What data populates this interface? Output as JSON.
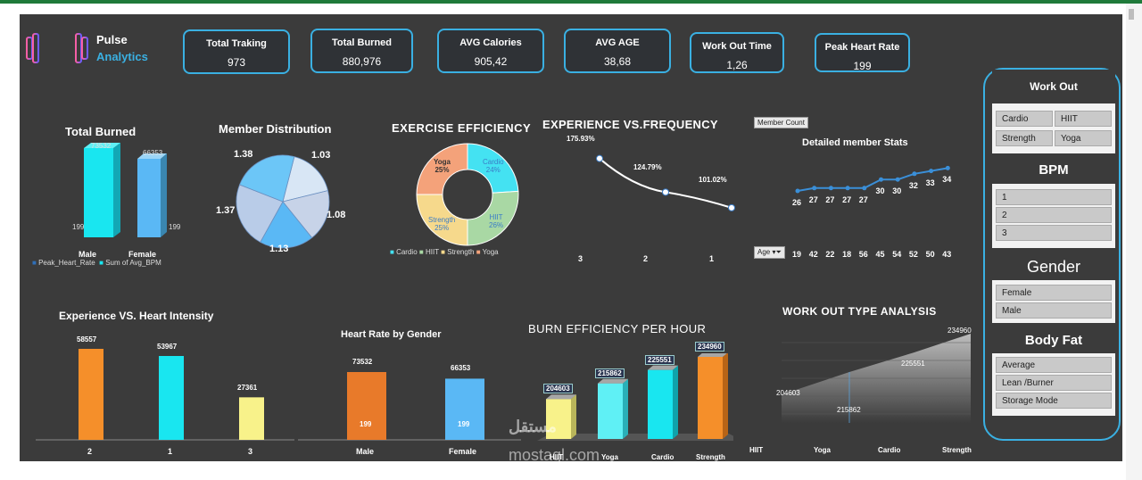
{
  "brand": {
    "line1": "Pulse",
    "line2": "Analytics"
  },
  "kpis": [
    {
      "label": "Total Traking",
      "value": "973"
    },
    {
      "label": "Total Burned",
      "value": "880,976"
    },
    {
      "label": "AVG Calories",
      "value": "905,42"
    },
    {
      "label": "AVG AGE",
      "value": "38,68"
    },
    {
      "label": "Work Out Time",
      "value": "1,26"
    },
    {
      "label": "Peak Heart Rate",
      "value": "199"
    }
  ],
  "charts": {
    "total_burned": {
      "title": "Total Burned",
      "categories": [
        "Male",
        "Female"
      ],
      "top_values": [
        "73532",
        "66353"
      ],
      "bottom_values": [
        "199",
        "199"
      ],
      "legend": [
        "Peak_Heart_Rate",
        "Sum of Avg_BPM"
      ]
    },
    "member_distribution": {
      "title": "Member Distribution",
      "labels": [
        "1.03",
        "1.08",
        "1.13",
        "1.37",
        "1.38"
      ]
    },
    "exercise_efficiency": {
      "title": "EXERCISE EFFICIENCY",
      "segments": [
        {
          "name": "Cardio",
          "pct": "24%"
        },
        {
          "name": "HIIT",
          "pct": "26%"
        },
        {
          "name": "Strength",
          "pct": "25%"
        },
        {
          "name": "Yoga",
          "pct": "25%"
        }
      ],
      "legend": [
        "Cardio",
        "HIIT",
        "Strength",
        "Yoga"
      ]
    },
    "experience_frequency": {
      "title": "EXPERIENCE VS.FREQUENCY",
      "labels": [
        "175.93%",
        "124.79%",
        "101.02%"
      ],
      "x": [
        "3",
        "2",
        "1"
      ]
    },
    "member_stats": {
      "tag": "Member Count",
      "title": "Detailed member Stats",
      "values": [
        "26",
        "27",
        "27",
        "27",
        "27",
        "30",
        "30",
        "32",
        "33",
        "34"
      ],
      "age_tag": "Age",
      "ages": [
        "19",
        "42",
        "22",
        "18",
        "56",
        "45",
        "54",
        "52",
        "50",
        "43"
      ]
    },
    "experience_heart": {
      "title": "Experience VS. Heart Intensity",
      "values": [
        "58557",
        "53967",
        "27361"
      ],
      "x": [
        "2",
        "1",
        "3"
      ]
    },
    "heart_rate_gender": {
      "title": "Heart Rate by Gender",
      "top": [
        "73532",
        "66353"
      ],
      "bottom": [
        "199",
        "199"
      ],
      "x": [
        "Male",
        "Female"
      ]
    },
    "burn_efficiency": {
      "title": "BURN EFFICIENCY PER HOUR",
      "values": [
        "204603",
        "215862",
        "225551",
        "234960"
      ],
      "x": [
        "HIIT",
        "Yoga",
        "Cardio",
        "Strength"
      ]
    },
    "workout_type": {
      "title": "WORK OUT TYPE ANALYSIS",
      "values": [
        "204603",
        "215862",
        "225551",
        "234960"
      ],
      "x": [
        "HIIT",
        "Yoga",
        "Cardio",
        "Strength"
      ]
    }
  },
  "chart_data": [
    {
      "type": "bar",
      "title": "Total Burned",
      "categories": [
        "Male",
        "Female"
      ],
      "series": [
        {
          "name": "Peak_Heart_Rate",
          "values": [
            199,
            199
          ]
        },
        {
          "name": "Sum of Avg_BPM",
          "values": [
            73532,
            66353
          ]
        }
      ]
    },
    {
      "type": "pie",
      "title": "Member Distribution",
      "values": [
        1.03,
        1.08,
        1.13,
        1.37,
        1.38
      ]
    },
    {
      "type": "pie",
      "title": "EXERCISE EFFICIENCY",
      "categories": [
        "Cardio",
        "HIIT",
        "Strength",
        "Yoga"
      ],
      "values": [
        24,
        26,
        25,
        25
      ]
    },
    {
      "type": "line",
      "title": "EXPERIENCE VS.FREQUENCY",
      "x": [
        "3",
        "2",
        "1"
      ],
      "values": [
        175.93,
        124.79,
        101.02
      ]
    },
    {
      "type": "line",
      "title": "Detailed member Stats",
      "x": [
        "19",
        "42",
        "22",
        "18",
        "56",
        "45",
        "54",
        "52",
        "50",
        "43"
      ],
      "values": [
        26,
        27,
        27,
        27,
        27,
        30,
        30,
        32,
        33,
        34
      ]
    },
    {
      "type": "bar",
      "title": "Experience VS. Heart Intensity",
      "categories": [
        "2",
        "1",
        "3"
      ],
      "values": [
        58557,
        53967,
        27361
      ]
    },
    {
      "type": "bar",
      "title": "Heart Rate by Gender",
      "categories": [
        "Male",
        "Female"
      ],
      "series": [
        {
          "values": [
            73532,
            66353
          ]
        },
        {
          "values": [
            199,
            199
          ]
        }
      ]
    },
    {
      "type": "bar",
      "title": "BURN EFFICIENCY PER HOUR",
      "categories": [
        "HIIT",
        "Yoga",
        "Cardio",
        "Strength"
      ],
      "values": [
        204603,
        215862,
        225551,
        234960
      ]
    },
    {
      "type": "area",
      "title": "WORK OUT TYPE ANALYSIS",
      "categories": [
        "HIIT",
        "Yoga",
        "Cardio",
        "Strength"
      ],
      "values": [
        204603,
        215862,
        225551,
        234960
      ]
    }
  ],
  "slicers": {
    "workout": {
      "title": "Work Out",
      "items": [
        "Cardio",
        "HIIT",
        "Strength",
        "Yoga"
      ]
    },
    "bpm": {
      "title": "BPM",
      "items": [
        "1",
        "2",
        "3"
      ]
    },
    "gender": {
      "title": "Gender",
      "items": [
        "Female",
        "Male"
      ]
    },
    "bodyfat": {
      "title": "Body Fat",
      "items": [
        "Average",
        "Lean /Burner",
        "Storage Mode"
      ]
    }
  },
  "watermark": {
    "arabic": "مستقل",
    "latin": "mostaql.com"
  },
  "colors": {
    "accent": "#3ab0e2",
    "cyan": "#19e6f0",
    "orange": "#f58f2a",
    "blue": "#5ab8f5",
    "yellow": "#f8f28a"
  }
}
